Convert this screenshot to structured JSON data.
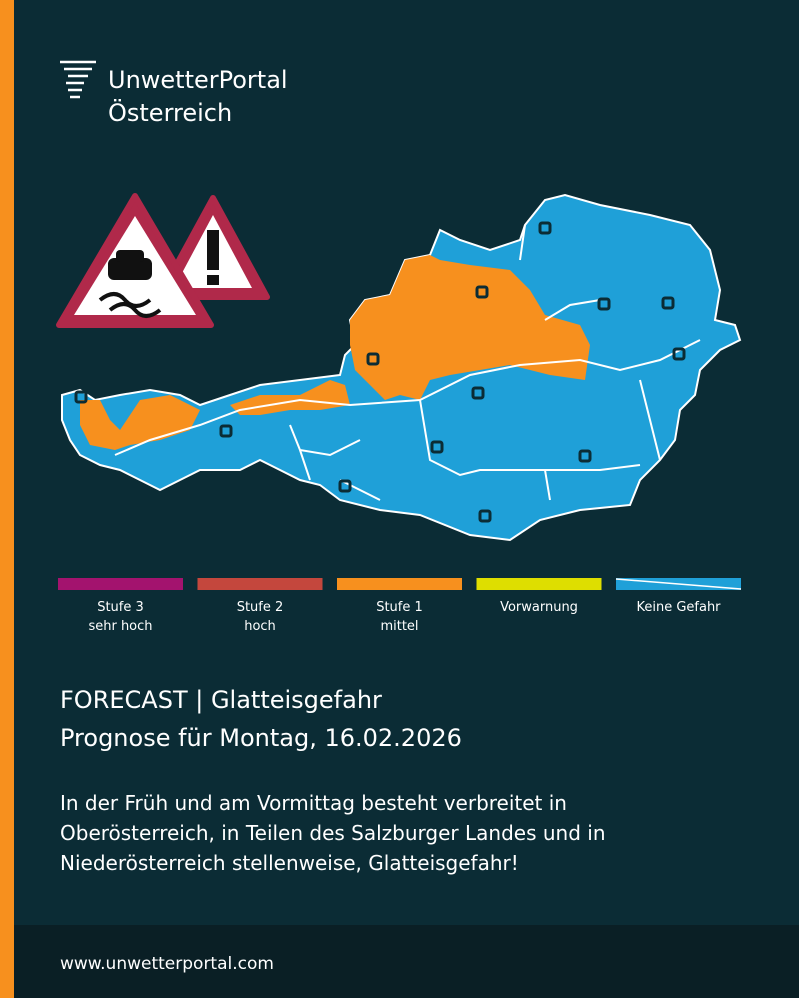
{
  "brand": {
    "name": "UnwetterPortal",
    "region": "Österreich"
  },
  "legend": [
    {
      "lines": [
        "Stufe 3",
        "sehr hoch"
      ],
      "color": "#a3136e"
    },
    {
      "lines": [
        "Stufe 2",
        "hoch"
      ],
      "color": "#c4473d"
    },
    {
      "lines": [
        "Stufe 1",
        "mittel"
      ],
      "color": "#f7901e"
    },
    {
      "lines": [
        "Vorwarnung"
      ],
      "color": "#dede00"
    },
    {
      "lines": [
        "Keine Gefahr"
      ],
      "color": "#1fa0d8"
    }
  ],
  "headline": [
    "FORECAST | Glatteisgefahr",
    "Prognose für Montag, 16.02.2026"
  ],
  "body": [
    "In der Früh und am Vormittag besteht verbreitet in",
    "Oberösterreich, in Teilen des Salzburger Landes und in",
    "Niederösterreich stellenweise, Glatteisgefahr!"
  ],
  "footer": {
    "url": "www.unwetterportal.com"
  }
}
